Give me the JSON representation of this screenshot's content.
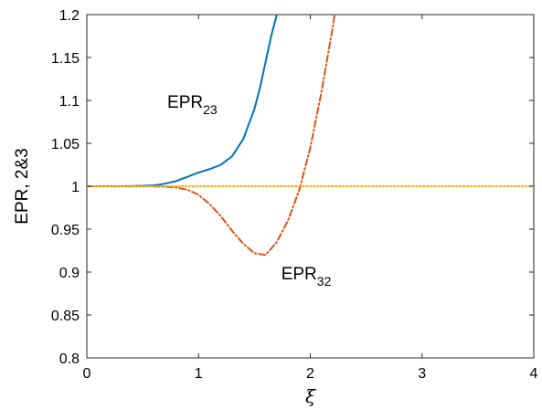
{
  "chart_data": {
    "type": "line",
    "xlabel": "ξ",
    "ylabel": "EPR, 2&3",
    "xlim": [
      0,
      4
    ],
    "ylim": [
      0.8,
      1.2
    ],
    "x_ticks": [
      "0",
      "1",
      "2",
      "3",
      "4"
    ],
    "y_ticks": [
      "0.8",
      "0.85",
      "0.9",
      "0.95",
      "1",
      "1.05",
      "1.1",
      "1.15",
      "1.2"
    ],
    "grid": false,
    "series": [
      {
        "name": "EPR₂₃",
        "label_base": "EPR",
        "label_sub": "23",
        "color": "#0072BD",
        "style": "solid",
        "x": [
          0,
          0.3,
          0.5,
          0.6,
          0.7,
          0.8,
          0.9,
          1.0,
          1.1,
          1.2,
          1.3,
          1.4,
          1.5,
          1.55,
          1.6,
          1.65,
          1.7,
          1.72
        ],
        "y": [
          1.0,
          1.0,
          1.0005,
          1.001,
          1.003,
          1.006,
          1.011,
          1.016,
          1.02,
          1.025,
          1.035,
          1.055,
          1.09,
          1.115,
          1.145,
          1.175,
          1.2,
          1.21
        ]
      },
      {
        "name": "EPR₃₂",
        "label_base": "EPR",
        "label_sub": "32",
        "color": "#D95319",
        "style": "dashdot",
        "x": [
          0,
          0.5,
          0.7,
          0.8,
          0.9,
          1.0,
          1.1,
          1.2,
          1.3,
          1.4,
          1.5,
          1.6,
          1.7,
          1.8,
          1.9,
          2.0,
          2.1,
          2.2,
          2.23
        ],
        "y": [
          1.0,
          1.0,
          0.9995,
          0.9985,
          0.996,
          0.99,
          0.979,
          0.965,
          0.948,
          0.933,
          0.922,
          0.92,
          0.935,
          0.96,
          0.995,
          1.045,
          1.11,
          1.185,
          1.21
        ]
      },
      {
        "name": "",
        "color": "#EDB120",
        "style": "dotted",
        "x": [
          0,
          4
        ],
        "y": [
          1.0,
          1.0
        ]
      }
    ]
  }
}
